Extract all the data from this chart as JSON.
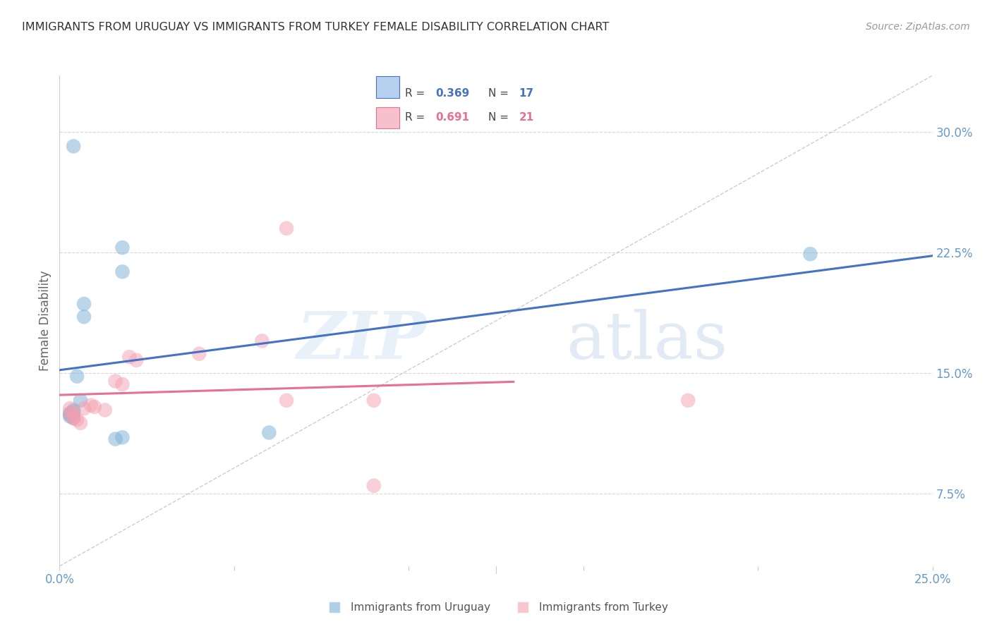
{
  "title": "IMMIGRANTS FROM URUGUAY VS IMMIGRANTS FROM TURKEY FEMALE DISABILITY CORRELATION CHART",
  "source": "Source: ZipAtlas.com",
  "ylabel": "Female Disability",
  "ytick_values": [
    0.075,
    0.15,
    0.225,
    0.3
  ],
  "ytick_labels": [
    "7.5%",
    "15.0%",
    "22.5%",
    "30.0%"
  ],
  "xlim": [
    0.0,
    0.25
  ],
  "ylim": [
    0.03,
    0.335
  ],
  "watermark_zip": "ZIP",
  "watermark_atlas": "atlas",
  "legend_uruguay_R": "0.369",
  "legend_uruguay_N": "17",
  "legend_turkey_R": "0.691",
  "legend_turkey_N": "21",
  "uruguay_points": [
    [
      0.004,
      0.291
    ],
    [
      0.018,
      0.228
    ],
    [
      0.018,
      0.213
    ],
    [
      0.007,
      0.193
    ],
    [
      0.007,
      0.185
    ],
    [
      0.005,
      0.148
    ],
    [
      0.006,
      0.133
    ],
    [
      0.004,
      0.127
    ],
    [
      0.004,
      0.126
    ],
    [
      0.003,
      0.125
    ],
    [
      0.003,
      0.124
    ],
    [
      0.003,
      0.123
    ],
    [
      0.004,
      0.122
    ],
    [
      0.018,
      0.11
    ],
    [
      0.016,
      0.109
    ],
    [
      0.06,
      0.113
    ],
    [
      0.215,
      0.224
    ]
  ],
  "turkey_points": [
    [
      0.003,
      0.128
    ],
    [
      0.003,
      0.125
    ],
    [
      0.004,
      0.124
    ],
    [
      0.004,
      0.122
    ],
    [
      0.005,
      0.121
    ],
    [
      0.006,
      0.119
    ],
    [
      0.007,
      0.128
    ],
    [
      0.009,
      0.13
    ],
    [
      0.01,
      0.129
    ],
    [
      0.013,
      0.127
    ],
    [
      0.016,
      0.145
    ],
    [
      0.018,
      0.143
    ],
    [
      0.02,
      0.16
    ],
    [
      0.022,
      0.158
    ],
    [
      0.04,
      0.162
    ],
    [
      0.058,
      0.17
    ],
    [
      0.065,
      0.133
    ],
    [
      0.065,
      0.24
    ],
    [
      0.09,
      0.133
    ],
    [
      0.09,
      0.08
    ],
    [
      0.18,
      0.133
    ]
  ],
  "uruguay_color": "#7bafd4",
  "turkey_color": "#f4a0b0",
  "uruguay_line_color": "#4472c4",
  "turkey_line_color": "#e87090",
  "diagonal_color": "#c8c8c8",
  "grid_color": "#d8d8d8",
  "bg_color": "#ffffff",
  "title_color": "#333333",
  "tick_label_color": "#6699cc",
  "ylabel_color": "#666666",
  "source_color": "#999999"
}
